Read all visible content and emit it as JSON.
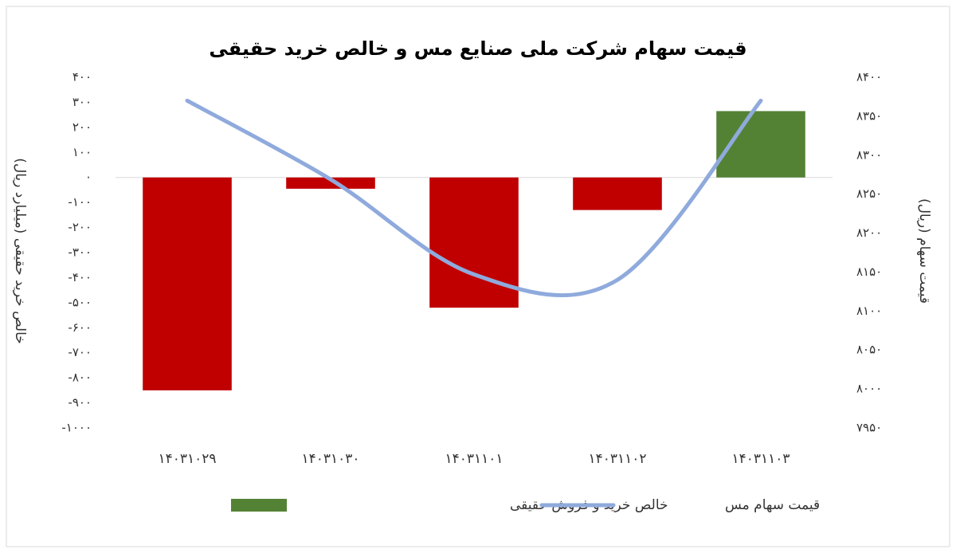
{
  "chart_data": {
    "type": "bar-line",
    "title": "قیمت سهام شرکت ملی صنایع مس و خالص خرید حقیقی",
    "ylabel": "خالص خرید حقیقی (میلیارد ریال)",
    "y2label": "قیمت سهام (ریال)",
    "categories": [
      "۱۴۰۳۱۰۲۹",
      "۱۴۰۳۱۰۳۰",
      "۱۴۰۳۱۱۰۱",
      "۱۴۰۳۱۱۰۲",
      "۱۴۰۳۱۱۰۳"
    ],
    "series": [
      {
        "name": "خالص خرید و فروش حقیقی",
        "type": "bar",
        "color": "#548235",
        "negative_color": "#c00000",
        "values": [
          -850,
          -45,
          -520,
          -130,
          265
        ]
      },
      {
        "name": "قیمت سهام مس",
        "type": "line",
        "axis": "y2",
        "color": "#8faadc",
        "values": [
          8370,
          8269,
          8147,
          8140,
          8370
        ]
      }
    ],
    "ylim": [
      -1000,
      400
    ],
    "yticks": [
      {
        "value": 400,
        "label": "۴۰۰"
      },
      {
        "value": 300,
        "label": "۳۰۰"
      },
      {
        "value": 200,
        "label": "۲۰۰"
      },
      {
        "value": 100,
        "label": "۱۰۰"
      },
      {
        "value": 0,
        "label": "۰"
      },
      {
        "value": -100,
        "label": "-۱۰۰"
      },
      {
        "value": -200,
        "label": "-۲۰۰"
      },
      {
        "value": -300,
        "label": "-۳۰۰"
      },
      {
        "value": -400,
        "label": "-۴۰۰"
      },
      {
        "value": -500,
        "label": "-۵۰۰"
      },
      {
        "value": -600,
        "label": "-۶۰۰"
      },
      {
        "value": -700,
        "label": "-۷۰۰"
      },
      {
        "value": -800,
        "label": "-۸۰۰"
      },
      {
        "value": -900,
        "label": "-۹۰۰"
      },
      {
        "value": -1000,
        "label": "-۱۰۰۰"
      }
    ],
    "y2lim": [
      7950,
      8400
    ],
    "y2ticks": [
      {
        "value": 8400,
        "label": "۸۴۰۰"
      },
      {
        "value": 8350,
        "label": "۸۳۵۰"
      },
      {
        "value": 8300,
        "label": "۸۳۰۰"
      },
      {
        "value": 8250,
        "label": "۸۲۵۰"
      },
      {
        "value": 8200,
        "label": "۸۲۰۰"
      },
      {
        "value": 8150,
        "label": "۸۱۵۰"
      },
      {
        "value": 8100,
        "label": "۸۱۰۰"
      },
      {
        "value": 8050,
        "label": "۸۰۵۰"
      },
      {
        "value": 8000,
        "label": "۸۰۰۰"
      },
      {
        "value": 7950,
        "label": "۷۹۵۰"
      }
    ],
    "grid": false
  }
}
